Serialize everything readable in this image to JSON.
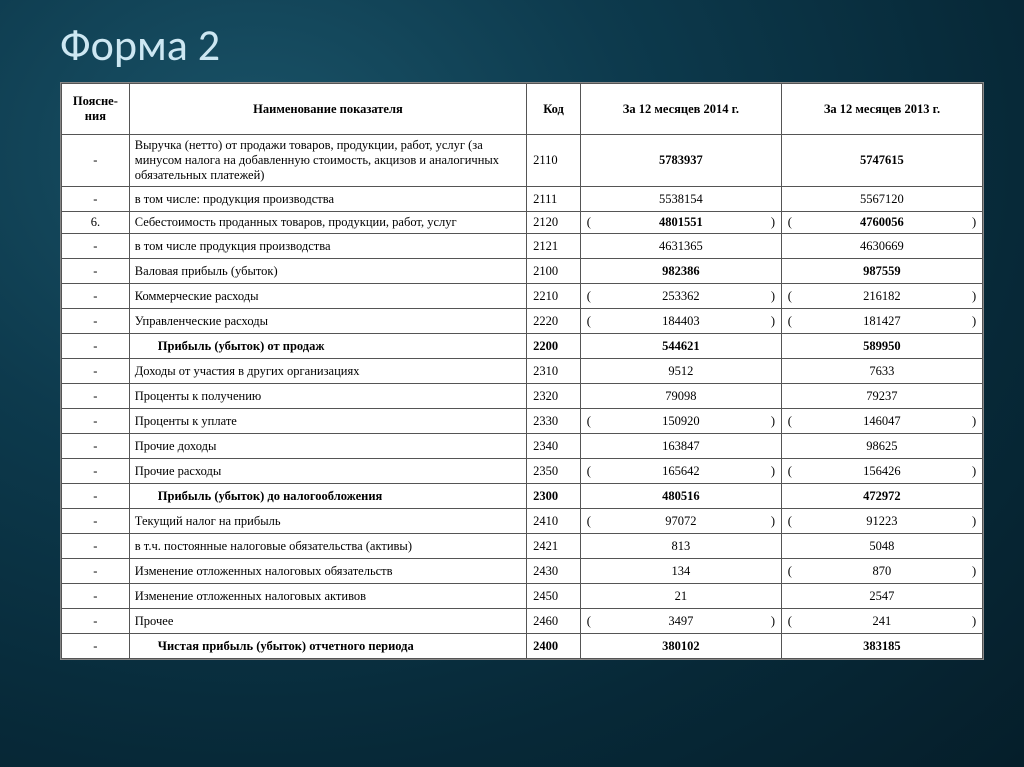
{
  "title": "Форма 2",
  "columns": {
    "note": "Поясне-\nния",
    "name": "Наименование показателя",
    "code": "Код",
    "y2014": "За  12 месяцев 2014 г.",
    "y2013": "За 12 месяцев 2013 г."
  },
  "rows": [
    {
      "note": "-",
      "name": "Выручка (нетто) от продажи товаров, продукции, работ, услуг (за минусом налога на добавленную стоимость, акцизов и аналогичных обязательных платежей)",
      "code": "2110",
      "v14": "5783937",
      "v13": "5747615",
      "p14": false,
      "p13": false,
      "bold": false,
      "vbold": true,
      "tall": true
    },
    {
      "note": "-",
      "name": "в том числе:   продукция производства",
      "code": "2111",
      "v14": "5538154",
      "v13": "5567120",
      "p14": false,
      "p13": false,
      "bold": false,
      "vbold": false
    },
    {
      "note": "6.",
      "name": "Себестоимость проданных товаров, продукции, работ, услуг",
      "code": "2120",
      "v14": "4801551",
      "v13": "4760056",
      "p14": true,
      "p13": true,
      "bold": false,
      "vbold": true,
      "tall": true
    },
    {
      "note": "-",
      "name": "в том числе продукция производства",
      "code": "2121",
      "v14": "4631365",
      "v13": "4630669",
      "p14": false,
      "p13": false,
      "bold": false,
      "vbold": false
    },
    {
      "note": "-",
      "name": "Валовая прибыль (убыток)",
      "code": "2100",
      "v14": "982386",
      "v13": "987559",
      "p14": false,
      "p13": false,
      "bold": false,
      "vbold": true
    },
    {
      "note": "-",
      "name": "Коммерческие расходы",
      "code": "2210",
      "v14": "253362",
      "v13": "216182",
      "p14": true,
      "p13": true,
      "bold": false,
      "vbold": false
    },
    {
      "note": "-",
      "name": "Управленческие расходы",
      "code": "2220",
      "v14": "184403",
      "v13": "181427",
      "p14": true,
      "p13": true,
      "bold": false,
      "vbold": false
    },
    {
      "note": "-",
      "name": "Прибыль (убыток) от продаж",
      "code": "2200",
      "v14": "544621",
      "v13": "589950",
      "p14": false,
      "p13": false,
      "bold": true,
      "vbold": true,
      "indent": true
    },
    {
      "note": "-",
      "name": "Доходы от участия в других организациях",
      "code": "2310",
      "v14": "9512",
      "v13": "7633",
      "p14": false,
      "p13": false,
      "bold": false,
      "vbold": false
    },
    {
      "note": "-",
      "name": "Проценты к получению",
      "code": "2320",
      "v14": "79098",
      "v13": "79237",
      "p14": false,
      "p13": false,
      "bold": false,
      "vbold": false
    },
    {
      "note": "-",
      "name": "Проценты к уплате",
      "code": "2330",
      "v14": "150920",
      "v13": "146047",
      "p14": true,
      "p13": true,
      "bold": false,
      "vbold": false
    },
    {
      "note": "-",
      "name": "Прочие  доходы",
      "code": "2340",
      "v14": "163847",
      "v13": "98625",
      "p14": false,
      "p13": false,
      "bold": false,
      "vbold": false
    },
    {
      "note": "-",
      "name": "Прочие  расходы",
      "code": "2350",
      "v14": "165642",
      "v13": "156426",
      "p14": true,
      "p13": true,
      "bold": false,
      "vbold": false
    },
    {
      "note": "-",
      "name": "Прибыль (убыток) до налогообложения",
      "code": "2300",
      "v14": "480516",
      "v13": "472972",
      "p14": false,
      "p13": false,
      "bold": true,
      "vbold": true,
      "indent": true
    },
    {
      "note": "-",
      "name": "Текущий налог на прибыль",
      "code": "2410",
      "v14": "97072",
      "v13": "91223",
      "p14": true,
      "p13": true,
      "bold": false,
      "vbold": false
    },
    {
      "note": "-",
      "name": "в т.ч. постоянные налоговые обязательства (активы)",
      "code": "2421",
      "v14": "813",
      "v13": "5048",
      "p14": false,
      "p13": false,
      "bold": false,
      "vbold": false
    },
    {
      "note": "-",
      "name": "Изменение отложенных налоговых обязательств",
      "code": "2430",
      "v14": "134",
      "v13": "870",
      "p14": false,
      "p13": true,
      "bold": false,
      "vbold": false
    },
    {
      "note": "-",
      "name": "Изменение отложенных налоговых активов",
      "code": "2450",
      "v14": "21",
      "v13": "2547",
      "p14": false,
      "p13": false,
      "bold": false,
      "vbold": false
    },
    {
      "note": "-",
      "name": "Прочее",
      "code": "2460",
      "v14": "3497",
      "v13": "241",
      "p14": true,
      "p13": true,
      "bold": false,
      "vbold": false
    },
    {
      "note": "-",
      "name": "Чистая прибыль (убыток) отчетного периода",
      "code": "2400",
      "v14": "380102",
      "v13": "383185",
      "p14": false,
      "p13": false,
      "bold": true,
      "vbold": true,
      "indent": true
    }
  ]
}
